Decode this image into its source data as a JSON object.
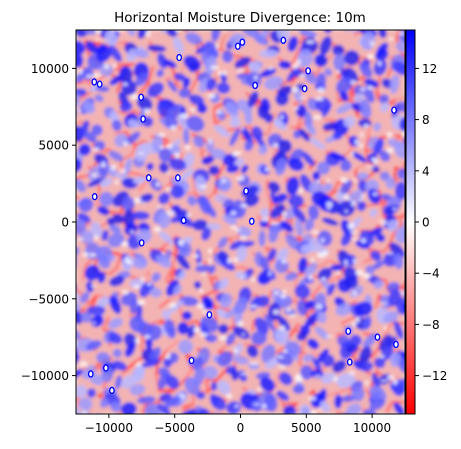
{
  "chart_data": {
    "type": "heatmap",
    "title": "Horizontal Moisture Divergence: 10m",
    "xlabel": "",
    "ylabel": "",
    "xlim": [
      -12500,
      12500
    ],
    "ylim": [
      -12500,
      12500
    ],
    "xticks": [
      -10000,
      -5000,
      0,
      5000,
      10000
    ],
    "xtick_labels": [
      "−10000",
      "−5000",
      "0",
      "5000",
      "10000"
    ],
    "yticks": [
      -10000,
      -5000,
      0,
      5000,
      10000
    ],
    "ytick_labels": [
      "−10000",
      "−5000",
      "0",
      "5000",
      "10000"
    ],
    "grid": false,
    "colorbar": {
      "cmap": "bwr_r",
      "vmin": -15,
      "vmax": 15,
      "ticks": [
        -12,
        -8,
        -4,
        0,
        4,
        8,
        12
      ],
      "tick_labels": [
        "−12",
        "−8",
        "−4",
        "0",
        "4",
        "8",
        "12"
      ],
      "colors": {
        "low": "#ff0000",
        "mid": "#ffffff",
        "high": "#0000ff"
      }
    },
    "field_description": "cellular convective pattern: blue cell interiors (positive) bounded by thin red convergence lines (negative)"
  }
}
